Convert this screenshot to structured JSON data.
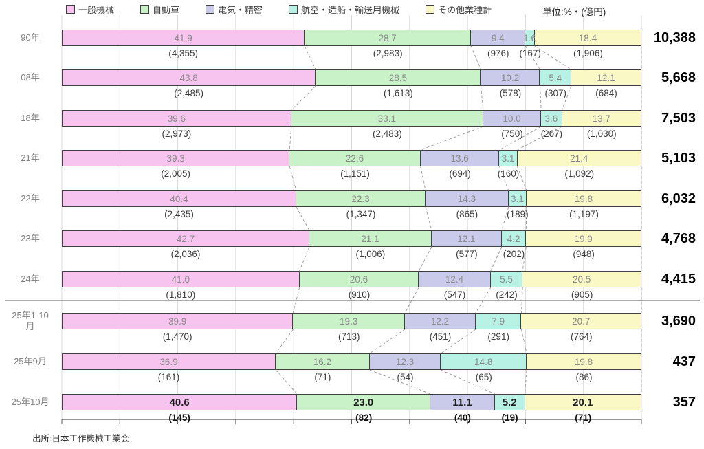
{
  "unit_label": "単位:%・(億円)",
  "source": "出所:日本工作機械工業会",
  "chart_data": {
    "type": "bar",
    "orientation": "horizontal-stacked",
    "xlim": [
      0,
      100
    ],
    "grid": "vertical, every 10%",
    "legend_position": "top",
    "series": [
      {
        "name": "一般機械",
        "color": "#F7C4F0"
      },
      {
        "name": "自動車",
        "color": "#C9F2C8"
      },
      {
        "name": "電気・精密",
        "color": "#CACAEA"
      },
      {
        "name": "航空・造船・輸送用機械",
        "color": "#B8F2E4"
      },
      {
        "name": "その他業種計",
        "color": "#FAF8C5"
      }
    ],
    "rows": [
      {
        "label": "90年",
        "percents": [
          "41.9",
          "28.7",
          "9.4",
          "1.6",
          "18.4"
        ],
        "amounts": [
          "(4,355)",
          "(2,983)",
          "(976)",
          "(167)",
          "(1,906)"
        ],
        "total": "10,388",
        "bold": false
      },
      {
        "label": "08年",
        "percents": [
          "43.8",
          "28.5",
          "10.2",
          "5.4",
          "12.1"
        ],
        "amounts": [
          "(2,485)",
          "(1,613)",
          "(578)",
          "(307)",
          "(684)"
        ],
        "total": "5,668",
        "bold": false
      },
      {
        "label": "18年",
        "percents": [
          "39.6",
          "33.1",
          "10.0",
          "3.6",
          "13.7"
        ],
        "amounts": [
          "(2,973)",
          "(2,483)",
          "(750)",
          "(267)",
          "(1,030)"
        ],
        "total": "7,503",
        "bold": false
      },
      {
        "label": "21年",
        "percents": [
          "39.3",
          "22.6",
          "13.6",
          "3.1",
          "21.4"
        ],
        "amounts": [
          "(2,005)",
          "(1,151)",
          "(694)",
          "(160)",
          "(1,092)"
        ],
        "total": "5,103",
        "bold": false
      },
      {
        "label": "22年",
        "percents": [
          "40.4",
          "22.3",
          "14.3",
          "3.1",
          "19.8"
        ],
        "amounts": [
          "(2,435)",
          "(1,347)",
          "(865)",
          "(189)",
          "(1,197)"
        ],
        "total": "6,032",
        "bold": false
      },
      {
        "label": "23年",
        "percents": [
          "42.7",
          "21.1",
          "12.1",
          "4.2",
          "19.9"
        ],
        "amounts": [
          "(2,036)",
          "(1,006)",
          "(577)",
          "(202)",
          "(948)"
        ],
        "total": "4,768",
        "bold": false
      },
      {
        "label": "24年",
        "percents": [
          "41.0",
          "20.6",
          "12.4",
          "5.5",
          "20.5"
        ],
        "amounts": [
          "(1,810)",
          "(910)",
          "(547)",
          "(242)",
          "(905)"
        ],
        "total": "4,415",
        "bold": false
      },
      {
        "label": "25年1-10月",
        "percents": [
          "39.9",
          "19.3",
          "12.2",
          "7.9",
          "20.7"
        ],
        "amounts": [
          "(1,470)",
          "(713)",
          "(451)",
          "(291)",
          "(764)"
        ],
        "total": "3,690",
        "bold": false
      },
      {
        "label": "25年9月",
        "percents": [
          "36.9",
          "16.2",
          "12.3",
          "14.8",
          "19.8"
        ],
        "amounts": [
          "(161)",
          "(71)",
          "(54)",
          "(65)",
          "(86)"
        ],
        "total": "437",
        "bold": false
      },
      {
        "label": "25年10月",
        "percents": [
          "40.6",
          "23.0",
          "11.1",
          "5.2",
          "20.1"
        ],
        "amounts": [
          "(145)",
          "(82)",
          "(40)",
          "(19)",
          "(71)"
        ],
        "total": "357",
        "bold": true
      }
    ],
    "separator_after_row": 6
  }
}
